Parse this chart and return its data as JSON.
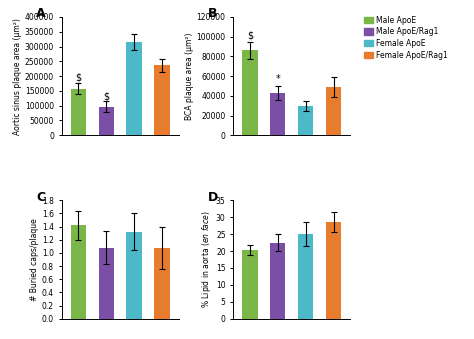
{
  "panel_A": {
    "title": "A",
    "ylabel": "Aortic sinus plaque area (μm²)",
    "ylim": [
      0,
      400000
    ],
    "yticks": [
      0,
      50000,
      100000,
      150000,
      200000,
      250000,
      300000,
      350000,
      400000
    ],
    "ytick_labels": [
      "0",
      "50000",
      "100000",
      "150000",
      "200000",
      "250000",
      "300000",
      "350000",
      "400000"
    ],
    "values": [
      158000,
      97000,
      315000,
      237000
    ],
    "errors": [
      18000,
      18000,
      28000,
      22000
    ],
    "annotations": [
      [
        "$",
        0,
        178000
      ],
      [
        "$",
        1,
        115000
      ]
    ]
  },
  "panel_B": {
    "title": "B",
    "ylabel": "BCA plaque area (μm²)",
    "ylim": [
      0,
      120000
    ],
    "yticks": [
      0,
      20000,
      40000,
      60000,
      80000,
      100000,
      120000
    ],
    "ytick_labels": [
      "0",
      "20000",
      "40000",
      "60000",
      "80000",
      "100000",
      "120000"
    ],
    "values": [
      86000,
      43000,
      30000,
      49000
    ],
    "errors": [
      9000,
      7000,
      5000,
      10000
    ],
    "annotations": [
      [
        "$",
        0,
        96000
      ],
      [
        "*",
        1,
        52000
      ]
    ]
  },
  "panel_C": {
    "title": "C",
    "ylabel": "# Buried caps/plaque",
    "ylim": [
      0.0,
      1.8
    ],
    "yticks": [
      0.0,
      0.2,
      0.4,
      0.6,
      0.8,
      1.0,
      1.2,
      1.4,
      1.6,
      1.8
    ],
    "ytick_labels": [
      "0.0",
      "0.2",
      "0.4",
      "0.6",
      "0.8",
      "1.0",
      "1.2",
      "1.4",
      "1.6",
      "1.8"
    ],
    "values": [
      1.42,
      1.08,
      1.32,
      1.08
    ],
    "errors": [
      0.22,
      0.25,
      0.28,
      0.32
    ]
  },
  "panel_D": {
    "title": "D",
    "ylabel": "% Lipid in aorta ($\\it{en\\ face}$)",
    "ylim": [
      0,
      35
    ],
    "yticks": [
      0,
      5,
      10,
      15,
      20,
      25,
      30,
      35
    ],
    "ytick_labels": [
      "0",
      "5",
      "10",
      "15",
      "20",
      "25",
      "30",
      "35"
    ],
    "values": [
      20.2,
      22.5,
      25.0,
      28.5
    ],
    "errors": [
      1.5,
      2.5,
      3.5,
      3.0
    ]
  },
  "colors": [
    "#7ab648",
    "#7b4fa6",
    "#4db8c8",
    "#e87c2e"
  ],
  "legend_labels": [
    "Male ApoE",
    "Male ApoE/Rag1",
    "Female ApoE",
    "Female ApoE/Rag1"
  ],
  "bar_width": 0.55,
  "group_positions": [
    0,
    1,
    2,
    3
  ]
}
